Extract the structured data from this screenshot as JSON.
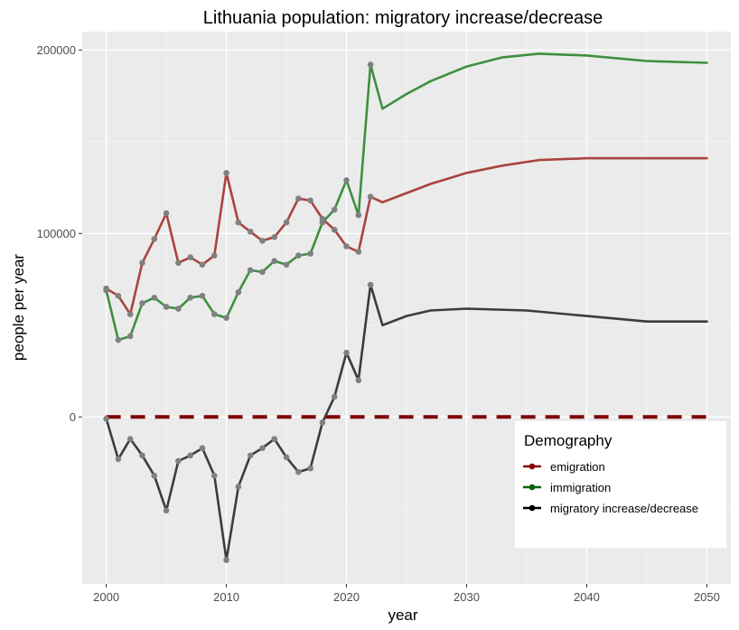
{
  "chart_data": {
    "type": "line",
    "title": "Lithuania population: migratory increase/decrease",
    "xlabel": "year",
    "ylabel": "people per year",
    "xlim": [
      1998,
      2052
    ],
    "ylim": [
      -91000,
      210000
    ],
    "x_ticks": [
      2000,
      2010,
      2020,
      2030,
      2040,
      2050
    ],
    "y_ticks": [
      0,
      100000,
      200000
    ],
    "x_tick_labels": [
      "2000",
      "2010",
      "2020",
      "2030",
      "2040",
      "2050"
    ],
    "y_tick_labels": [
      "0",
      "100000",
      "200000"
    ],
    "grid": true,
    "background": "#ebebeb",
    "legend": {
      "title": "Demography",
      "position": "bottom-right",
      "entries": [
        {
          "label": "emigration",
          "color": "#8b0000"
        },
        {
          "label": "immigration",
          "color": "#006400"
        },
        {
          "label": "migratory increase/decrease",
          "color": "#000000"
        }
      ]
    },
    "reference_line": {
      "y": 0,
      "style": "dashed",
      "color": "#800000"
    },
    "point_color": "#808080",
    "series": [
      {
        "name": "emigration",
        "line_color": "#a9443f",
        "observed": {
          "x": [
            2000,
            2001,
            2002,
            2003,
            2004,
            2005,
            2006,
            2007,
            2008,
            2009,
            2010,
            2011,
            2012,
            2013,
            2014,
            2015,
            2016,
            2017,
            2018,
            2019,
            2020,
            2021,
            2022
          ],
          "y": [
            70000,
            66000,
            56000,
            84000,
            97000,
            111000,
            84000,
            87000,
            83000,
            88000,
            133000,
            106000,
            101000,
            96000,
            98000,
            106000,
            119000,
            118000,
            108000,
            102000,
            93000,
            90000,
            120000
          ]
        },
        "projected": {
          "x": [
            2023,
            2025,
            2027,
            2030,
            2033,
            2036,
            2040,
            2045,
            2050
          ],
          "y": [
            117000,
            122000,
            127000,
            133000,
            137000,
            140000,
            141000,
            141000,
            141000
          ]
        }
      },
      {
        "name": "immigration",
        "line_color": "#3f8f3f",
        "observed": {
          "x": [
            2000,
            2001,
            2002,
            2003,
            2004,
            2005,
            2006,
            2007,
            2008,
            2009,
            2010,
            2011,
            2012,
            2013,
            2014,
            2015,
            2016,
            2017,
            2018,
            2019,
            2020,
            2021,
            2022
          ],
          "y": [
            69000,
            42000,
            44000,
            62000,
            65000,
            60000,
            59000,
            65000,
            66000,
            56000,
            54000,
            68000,
            80000,
            79000,
            85000,
            83000,
            88000,
            89000,
            106000,
            113000,
            129000,
            110000,
            192000
          ]
        },
        "projected": {
          "x": [
            2023,
            2025,
            2027,
            2030,
            2033,
            2036,
            2040,
            2045,
            2050
          ],
          "y": [
            168000,
            176000,
            183000,
            191000,
            196000,
            198000,
            197000,
            194000,
            193000
          ]
        }
      },
      {
        "name": "migratory increase/decrease",
        "line_color": "#3c3c3c",
        "observed": {
          "x": [
            2000,
            2001,
            2002,
            2003,
            2004,
            2005,
            2006,
            2007,
            2008,
            2009,
            2010,
            2011,
            2012,
            2013,
            2014,
            2015,
            2016,
            2017,
            2018,
            2019,
            2020,
            2021,
            2022
          ],
          "y": [
            -1000,
            -23000,
            -12000,
            -21000,
            -32000,
            -51000,
            -24000,
            -21000,
            -17000,
            -32000,
            -78000,
            -38000,
            -21000,
            -17000,
            -12000,
            -22000,
            -30000,
            -28000,
            -3000,
            11000,
            35000,
            20000,
            72000
          ]
        },
        "projected": {
          "x": [
            2023,
            2025,
            2027,
            2030,
            2035,
            2040,
            2045,
            2050
          ],
          "y": [
            50000,
            55000,
            58000,
            59000,
            58000,
            55000,
            52000,
            52000
          ]
        }
      }
    ]
  }
}
